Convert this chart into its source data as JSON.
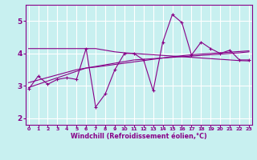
{
  "xlabel": "Windchill (Refroidissement éolien,°C)",
  "background_color": "#c8f0f0",
  "line_color": "#880088",
  "grid_color": "#ffffff",
  "x_data": [
    0,
    1,
    2,
    3,
    4,
    5,
    6,
    7,
    8,
    9,
    10,
    11,
    12,
    13,
    14,
    15,
    16,
    17,
    18,
    19,
    20,
    21,
    22,
    23
  ],
  "y_main": [
    2.9,
    3.3,
    3.05,
    3.2,
    3.25,
    3.2,
    4.15,
    2.35,
    2.75,
    3.5,
    4.0,
    4.0,
    3.8,
    2.85,
    4.35,
    5.2,
    4.95,
    3.95,
    4.35,
    4.15,
    4.0,
    4.1,
    3.8,
    3.8
  ],
  "y_trend1": [
    2.95,
    3.05,
    3.15,
    3.25,
    3.35,
    3.45,
    3.55,
    3.6,
    3.65,
    3.7,
    3.75,
    3.8,
    3.82,
    3.84,
    3.86,
    3.88,
    3.9,
    3.92,
    3.94,
    3.96,
    3.98,
    4.0,
    4.02,
    4.05
  ],
  "y_trend2": [
    3.1,
    3.18,
    3.26,
    3.34,
    3.42,
    3.5,
    3.55,
    3.58,
    3.62,
    3.66,
    3.7,
    3.74,
    3.78,
    3.82,
    3.86,
    3.9,
    3.93,
    3.96,
    3.98,
    4.0,
    4.02,
    4.04,
    4.06,
    4.08
  ],
  "y_flat": [
    4.15,
    4.15,
    4.15,
    4.15,
    4.15,
    4.15,
    4.15,
    4.15,
    4.1,
    4.05,
    4.02,
    4.0,
    3.98,
    3.96,
    3.94,
    3.92,
    3.9,
    3.88,
    3.86,
    3.84,
    3.82,
    3.8,
    3.78,
    3.77
  ],
  "xlim": [
    -0.3,
    23.3
  ],
  "ylim": [
    1.8,
    5.5
  ],
  "yticks": [
    2,
    3,
    4,
    5
  ],
  "xticks": [
    0,
    1,
    2,
    3,
    4,
    5,
    6,
    7,
    8,
    9,
    10,
    11,
    12,
    13,
    14,
    15,
    16,
    17,
    18,
    19,
    20,
    21,
    22,
    23
  ],
  "figwidth": 3.2,
  "figheight": 2.0,
  "dpi": 100
}
